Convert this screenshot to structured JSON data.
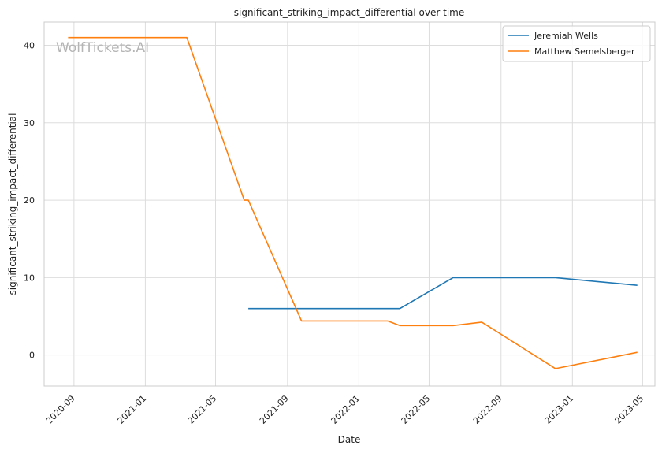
{
  "chart_data": {
    "type": "line",
    "title": "significant_striking_impact_differential over time",
    "xlabel": "Date",
    "ylabel": "significant_striking_impact_differential",
    "watermark": "WolfTickets.AI",
    "x_ticks": [
      "2020-09",
      "2021-01",
      "2021-05",
      "2021-09",
      "2022-01",
      "2022-05",
      "2022-09",
      "2023-01",
      "2023-05"
    ],
    "y_ticks": [
      0,
      10,
      20,
      30,
      40
    ],
    "xlim": [
      "2020-07-12",
      "2023-05-22"
    ],
    "ylim": [
      -4,
      43
    ],
    "grid": true,
    "legend_position": "top-right",
    "series": [
      {
        "name": "Jeremiah Wells",
        "color": "#1f77b4",
        "x": [
          "2021-06-26",
          "2022-03-12",
          "2022-06-11",
          "2022-12-03",
          "2023-04-22"
        ],
        "y": [
          6,
          6,
          10,
          10,
          9
        ]
      },
      {
        "name": "Matthew Semelsberger",
        "color": "#ff7f0e",
        "x": [
          "2020-08-22",
          "2021-03-13",
          "2021-06-19",
          "2021-06-26",
          "2021-09-25",
          "2022-02-19",
          "2022-03-12",
          "2022-06-11",
          "2022-07-30",
          "2022-12-03",
          "2023-04-22"
        ],
        "y": [
          41,
          41,
          20,
          20,
          4.4,
          4.4,
          3.8,
          3.8,
          4.25,
          -1.75,
          0.35
        ]
      }
    ]
  }
}
